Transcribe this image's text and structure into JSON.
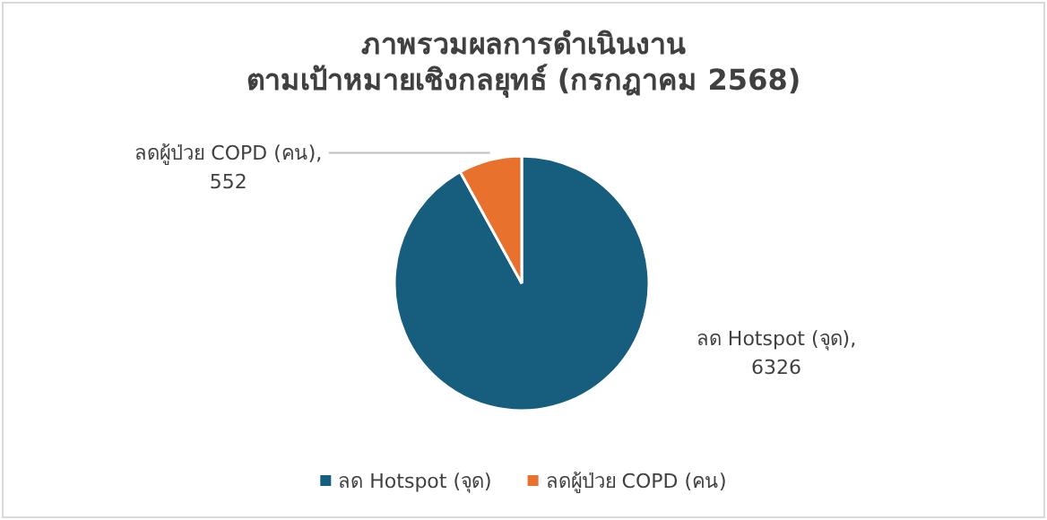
{
  "chart_data": {
    "type": "pie",
    "title": "ภาพรวมผลการดำเนินงาน\nตามเป้าหมายเชิงกลยุทธ์ (กรกฎาคม 2568)",
    "categories": [
      "ลด Hotspot (จุด)",
      "ลดผู้ป่วย COPD (คน)"
    ],
    "values": [
      6326,
      552
    ],
    "colors": [
      "#175d7e",
      "#e8712d"
    ],
    "value_labels": [
      "ลด Hotspot (จุด),\n6326",
      "ลดผู้ป่วย COPD (คน),\n552"
    ],
    "legend": "bottom"
  }
}
